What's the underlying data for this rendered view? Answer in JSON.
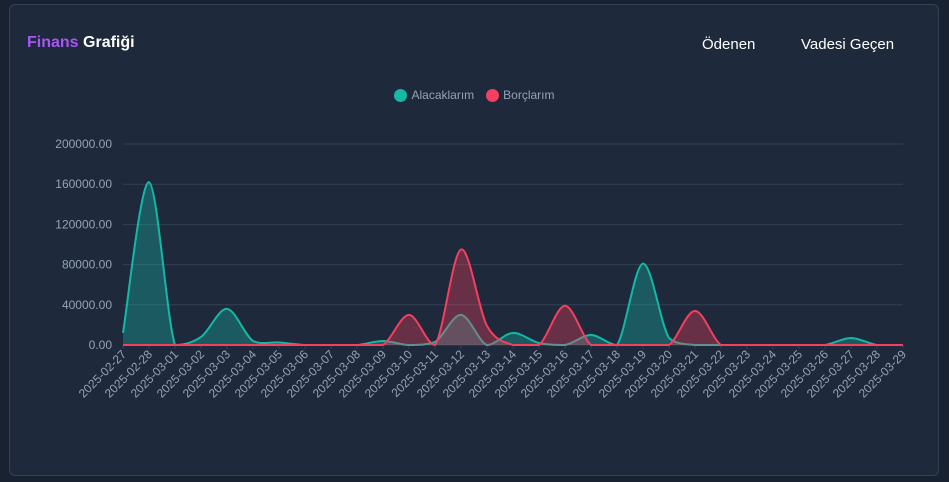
{
  "header": {
    "title_accent": "Finans",
    "title_rest": "Grafiği",
    "link_paid": "Ödenen",
    "link_overdue": "Vadesi Geçen"
  },
  "colors": {
    "receivables": "#14b8a6",
    "debts": "#f43f5e",
    "title_accent": "#a855f7"
  },
  "chart_data": {
    "type": "area",
    "title": "Finans Grafiği",
    "xlabel": "",
    "ylabel": "",
    "ylim": [
      0,
      200000
    ],
    "yticks": [
      "0.00",
      "40000.00",
      "80000.00",
      "120000.00",
      "160000.00",
      "200000.00"
    ],
    "legend_position": "top-center",
    "grid": true,
    "x": [
      "2025-02-27",
      "2025-02-28",
      "2025-03-01",
      "2025-03-02",
      "2025-03-03",
      "2025-03-04",
      "2025-03-05",
      "2025-03-06",
      "2025-03-07",
      "2025-03-08",
      "2025-03-09",
      "2025-03-10",
      "2025-03-11",
      "2025-03-12",
      "2025-03-13",
      "2025-03-14",
      "2025-03-15",
      "2025-03-16",
      "2025-03-17",
      "2025-03-18",
      "2025-03-19",
      "2025-03-20",
      "2025-03-21",
      "2025-03-22",
      "2025-03-23",
      "2025-03-24",
      "2025-03-25",
      "2025-03-26",
      "2025-03-27",
      "2025-03-28",
      "2025-03-29"
    ],
    "series": [
      {
        "name": "Alacaklarım",
        "color": "#14b8a6",
        "values": [
          12000,
          162000,
          0,
          8000,
          36000,
          4000,
          2500,
          0,
          0,
          0,
          4000,
          0,
          3000,
          30000,
          0,
          12000,
          2000,
          0,
          10000,
          0,
          81000,
          7000,
          0,
          0,
          0,
          0,
          0,
          0,
          7000,
          0,
          0
        ]
      },
      {
        "name": "Borçlarım",
        "color": "#f43f5e",
        "values": [
          0,
          0,
          0,
          0,
          0,
          0,
          0,
          0,
          0,
          0,
          0,
          30000,
          0,
          95000,
          19000,
          0,
          0,
          39000,
          0,
          0,
          0,
          0,
          34000,
          0,
          0,
          0,
          0,
          0,
          0,
          0,
          0
        ]
      }
    ]
  }
}
